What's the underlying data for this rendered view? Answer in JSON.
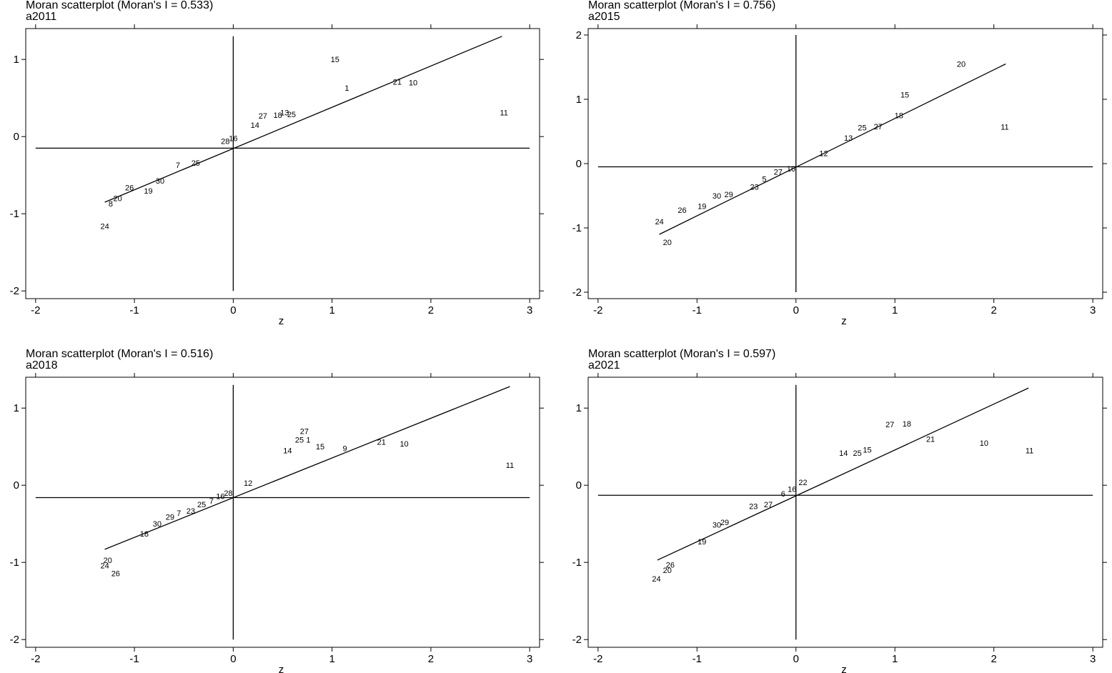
{
  "chart_data": [
    {
      "type": "scatter",
      "title": "Moran scatterplot (Moran's I = 0.533)",
      "subtitle": "a2011",
      "xlabel": "z",
      "xlim": [
        -2.1,
        3.1
      ],
      "ylim": [
        -2.1,
        1.4
      ],
      "xticks": [
        -2,
        -1,
        0,
        1,
        2,
        3
      ],
      "yticks": [
        -2,
        -1,
        0,
        1
      ],
      "hline_y": -0.15,
      "vline_x": 0,
      "fit_line": {
        "x": [
          -1.3,
          2.72
        ],
        "y": [
          -0.85,
          1.3
        ]
      },
      "points": [
        {
          "label": "15",
          "x": 1.03,
          "y": 1.0
        },
        {
          "label": "1",
          "x": 1.15,
          "y": 0.63
        },
        {
          "label": "21",
          "x": 1.66,
          "y": 0.71
        },
        {
          "label": "10",
          "x": 1.82,
          "y": 0.7
        },
        {
          "label": "11",
          "x": 2.74,
          "y": 0.31
        },
        {
          "label": "27",
          "x": 0.3,
          "y": 0.27
        },
        {
          "label": "18",
          "x": 0.45,
          "y": 0.28
        },
        {
          "label": "13",
          "x": 0.52,
          "y": 0.31
        },
        {
          "label": "25",
          "x": 0.59,
          "y": 0.29
        },
        {
          "label": "14",
          "x": 0.22,
          "y": 0.15
        },
        {
          "label": "16",
          "x": 0.0,
          "y": -0.02
        },
        {
          "label": "28",
          "x": -0.08,
          "y": -0.06
        },
        {
          "label": "7",
          "x": -0.56,
          "y": -0.37
        },
        {
          "label": "25",
          "x": -0.38,
          "y": -0.34
        },
        {
          "label": "26",
          "x": -1.05,
          "y": -0.66
        },
        {
          "label": "20",
          "x": -1.17,
          "y": -0.8
        },
        {
          "label": "8",
          "x": -1.24,
          "y": -0.87
        },
        {
          "label": "30",
          "x": -0.74,
          "y": -0.57
        },
        {
          "label": "19",
          "x": -0.86,
          "y": -0.7
        },
        {
          "label": "24",
          "x": -1.3,
          "y": -1.16
        }
      ]
    },
    {
      "type": "scatter",
      "title": "Moran scatterplot (Moran's I = 0.756)",
      "subtitle": "a2015",
      "xlabel": "z",
      "xlim": [
        -2.1,
        3.1
      ],
      "ylim": [
        -2.1,
        2.1
      ],
      "xticks": [
        -2,
        -1,
        0,
        1,
        2,
        3
      ],
      "yticks": [
        -2,
        -1,
        0,
        1,
        2
      ],
      "hline_y": -0.05,
      "vline_x": 0,
      "fit_line": {
        "x": [
          -1.38,
          2.12
        ],
        "y": [
          -1.1,
          1.55
        ]
      },
      "points": [
        {
          "label": "20",
          "x": 1.67,
          "y": 1.55
        },
        {
          "label": "15",
          "x": 1.1,
          "y": 1.07
        },
        {
          "label": "18",
          "x": 1.04,
          "y": 0.75
        },
        {
          "label": "11",
          "x": 2.11,
          "y": 0.57
        },
        {
          "label": "25",
          "x": 0.67,
          "y": 0.56
        },
        {
          "label": "27",
          "x": 0.83,
          "y": 0.58
        },
        {
          "label": "13",
          "x": 0.53,
          "y": 0.4
        },
        {
          "label": "12",
          "x": 0.28,
          "y": 0.16
        },
        {
          "label": "16",
          "x": -0.05,
          "y": -0.08
        },
        {
          "label": "27",
          "x": -0.18,
          "y": -0.13
        },
        {
          "label": "5",
          "x": -0.32,
          "y": -0.24
        },
        {
          "label": "23",
          "x": -0.42,
          "y": -0.36
        },
        {
          "label": "30",
          "x": -0.8,
          "y": -0.5
        },
        {
          "label": "29",
          "x": -0.68,
          "y": -0.48
        },
        {
          "label": "19",
          "x": -0.95,
          "y": -0.66
        },
        {
          "label": "26",
          "x": -1.15,
          "y": -0.72
        },
        {
          "label": "24",
          "x": -1.38,
          "y": -0.9
        },
        {
          "label": "20",
          "x": -1.3,
          "y": -1.22
        }
      ]
    },
    {
      "type": "scatter",
      "title": "Moran scatterplot (Moran's I = 0.516)",
      "subtitle": "a2018",
      "xlabel": "z",
      "xlim": [
        -2.1,
        3.1
      ],
      "ylim": [
        -2.1,
        1.4
      ],
      "xticks": [
        -2,
        -1,
        0,
        1,
        2,
        3
      ],
      "yticks": [
        -2,
        -1,
        0,
        1
      ],
      "hline_y": -0.16,
      "vline_x": 0,
      "fit_line": {
        "x": [
          -1.3,
          2.8
        ],
        "y": [
          -0.83,
          1.28
        ]
      },
      "points": [
        {
          "label": "27",
          "x": 0.72,
          "y": 0.7
        },
        {
          "label": "25",
          "x": 0.67,
          "y": 0.59
        },
        {
          "label": "1",
          "x": 0.76,
          "y": 0.59
        },
        {
          "label": "15",
          "x": 0.88,
          "y": 0.5
        },
        {
          "label": "14",
          "x": 0.55,
          "y": 0.45
        },
        {
          "label": "9",
          "x": 1.13,
          "y": 0.48
        },
        {
          "label": "21",
          "x": 1.5,
          "y": 0.56
        },
        {
          "label": "10",
          "x": 1.73,
          "y": 0.54
        },
        {
          "label": "11",
          "x": 2.8,
          "y": 0.26
        },
        {
          "label": "12",
          "x": 0.15,
          "y": 0.03
        },
        {
          "label": "28",
          "x": -0.05,
          "y": -0.1
        },
        {
          "label": "16",
          "x": -0.13,
          "y": -0.14
        },
        {
          "label": "7",
          "x": -0.22,
          "y": -0.2
        },
        {
          "label": "25",
          "x": -0.32,
          "y": -0.25
        },
        {
          "label": "23",
          "x": -0.43,
          "y": -0.33
        },
        {
          "label": "7",
          "x": -0.55,
          "y": -0.36
        },
        {
          "label": "29",
          "x": -0.64,
          "y": -0.41
        },
        {
          "label": "30",
          "x": -0.77,
          "y": -0.5
        },
        {
          "label": "18",
          "x": -0.9,
          "y": -0.63
        },
        {
          "label": "20",
          "x": -1.27,
          "y": -0.97
        },
        {
          "label": "24",
          "x": -1.3,
          "y": -1.04
        },
        {
          "label": "26",
          "x": -1.19,
          "y": -1.14
        }
      ]
    },
    {
      "type": "scatter",
      "title": "Moran scatterplot (Moran's I = 0.597)",
      "subtitle": "a2021",
      "xlabel": "z",
      "xlim": [
        -2.1,
        3.1
      ],
      "ylim": [
        -2.1,
        1.4
      ],
      "xticks": [
        -2,
        -1,
        0,
        1,
        2,
        3
      ],
      "yticks": [
        -2,
        -1,
        0,
        1
      ],
      "hline_y": -0.13,
      "vline_x": 0,
      "fit_line": {
        "x": [
          -1.4,
          2.35
        ],
        "y": [
          -0.97,
          1.26
        ]
      },
      "points": [
        {
          "label": "18",
          "x": 1.12,
          "y": 0.8
        },
        {
          "label": "27",
          "x": 0.95,
          "y": 0.79
        },
        {
          "label": "21",
          "x": 1.36,
          "y": 0.6
        },
        {
          "label": "10",
          "x": 1.9,
          "y": 0.55
        },
        {
          "label": "11",
          "x": 2.36,
          "y": 0.45
        },
        {
          "label": "15",
          "x": 0.72,
          "y": 0.46
        },
        {
          "label": "25",
          "x": 0.62,
          "y": 0.42
        },
        {
          "label": "14",
          "x": 0.48,
          "y": 0.42
        },
        {
          "label": "22",
          "x": 0.07,
          "y": 0.04
        },
        {
          "label": "16",
          "x": -0.04,
          "y": -0.05
        },
        {
          "label": "6",
          "x": -0.13,
          "y": -0.11
        },
        {
          "label": "27",
          "x": -0.28,
          "y": -0.25
        },
        {
          "label": "23",
          "x": -0.43,
          "y": -0.27
        },
        {
          "label": "29",
          "x": -0.72,
          "y": -0.48
        },
        {
          "label": "30",
          "x": -0.8,
          "y": -0.51
        },
        {
          "label": "19",
          "x": -0.95,
          "y": -0.73
        },
        {
          "label": "26",
          "x": -1.27,
          "y": -1.03
        },
        {
          "label": "20",
          "x": -1.3,
          "y": -1.1
        },
        {
          "label": "24",
          "x": -1.41,
          "y": -1.21
        }
      ]
    }
  ]
}
